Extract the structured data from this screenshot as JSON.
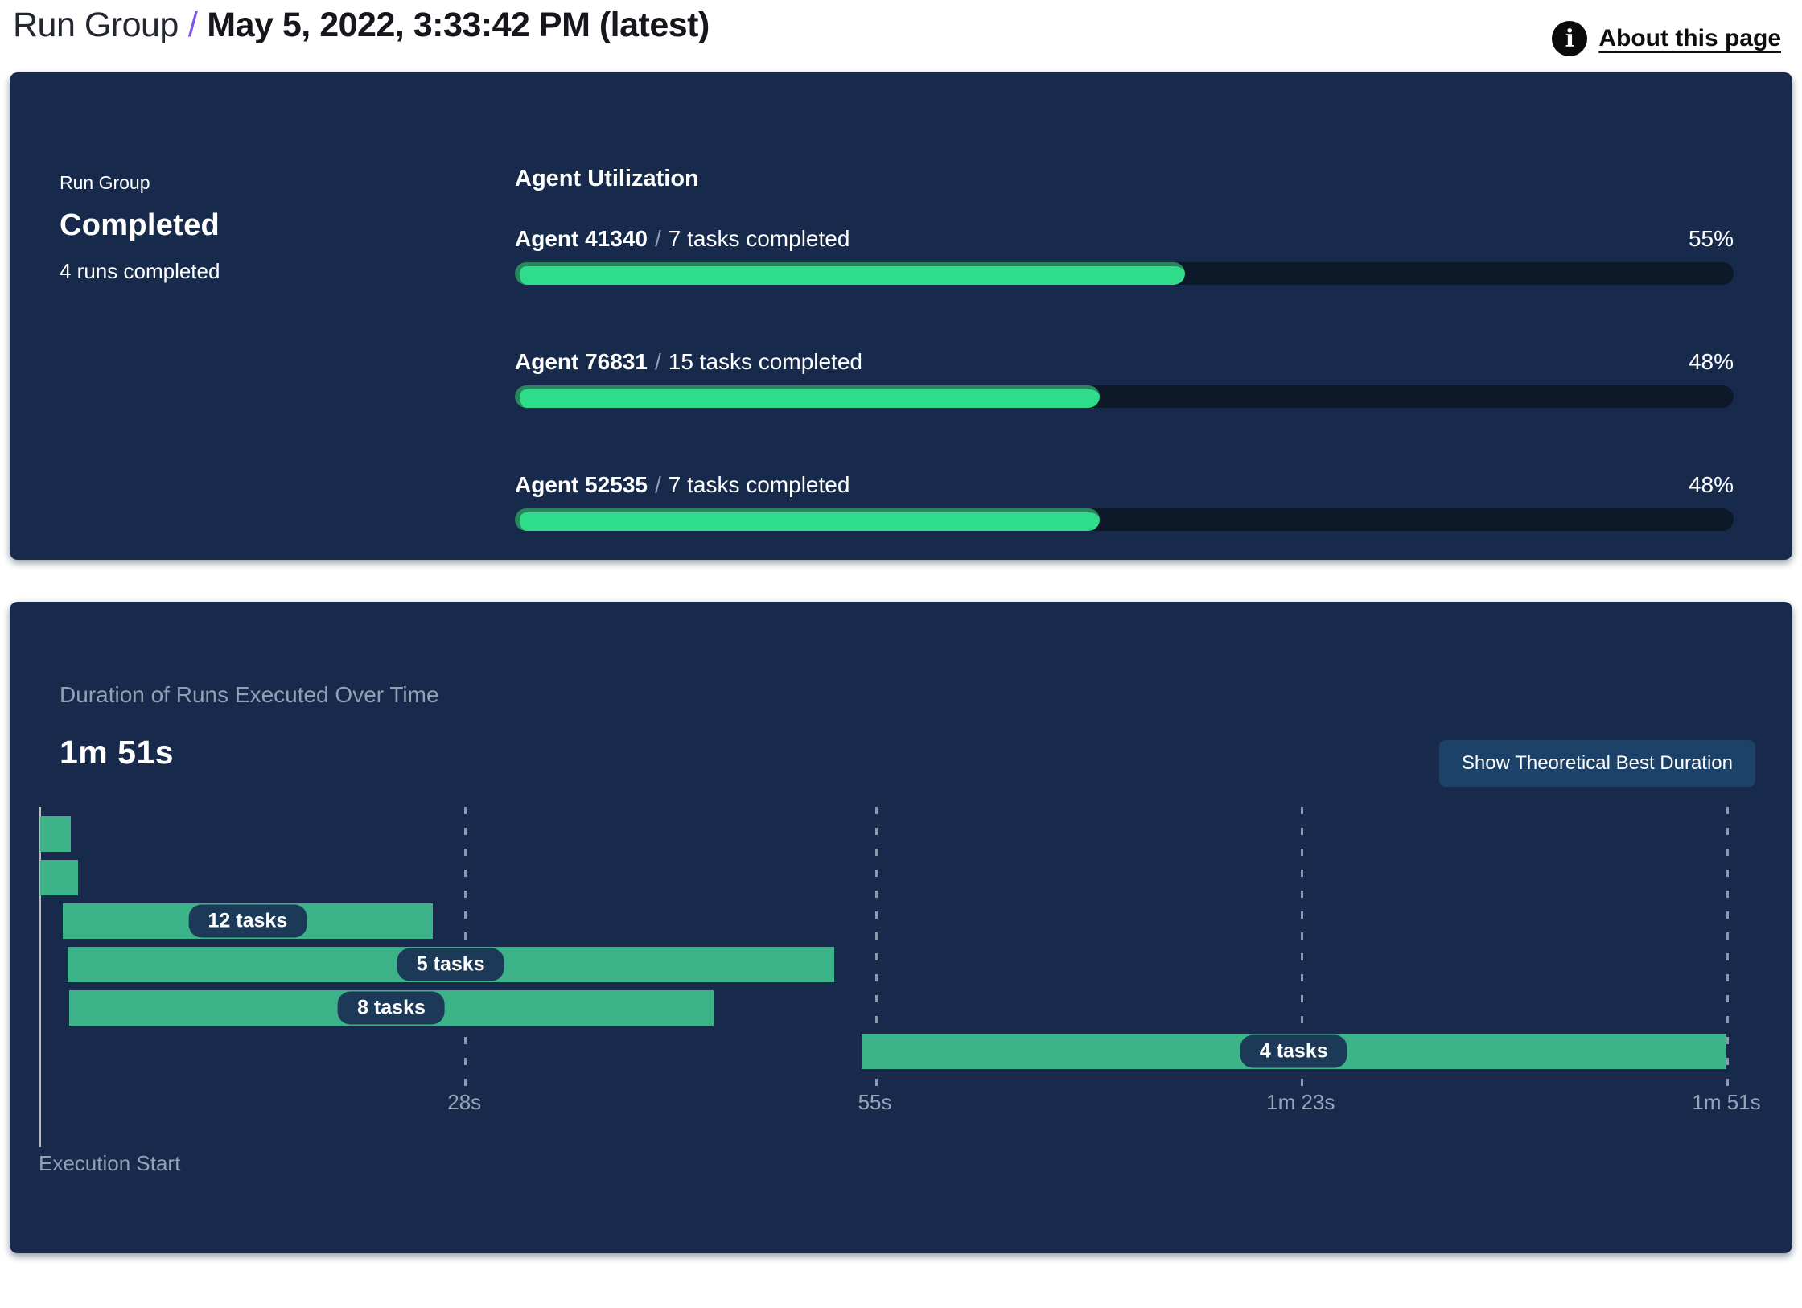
{
  "header": {
    "breadcrumb_root": "Run Group",
    "separator": "/",
    "breadcrumb_current": "May 5, 2022, 3:33:42 PM (latest)",
    "about_link": "About this page",
    "info_icon_glyph": "i"
  },
  "summary": {
    "label": "Run Group",
    "status": "Completed",
    "runs_completed": "4 runs completed"
  },
  "agent_utilization": {
    "title": "Agent Utilization",
    "separator": "/",
    "agents": [
      {
        "name": "Agent 41340",
        "tasks": "7 tasks completed",
        "percent": "55%",
        "value": 55
      },
      {
        "name": "Agent 76831",
        "tasks": "15 tasks completed",
        "percent": "48%",
        "value": 48
      },
      {
        "name": "Agent 52535",
        "tasks": "7 tasks completed",
        "percent": "48%",
        "value": 48
      }
    ]
  },
  "duration_chart": {
    "button_label": "Show Theoretical Best Duration"
  },
  "chart_data": [
    {
      "type": "bar",
      "title": "Agent Utilization",
      "categories": [
        "Agent 41340",
        "Agent 76831",
        "Agent 52535"
      ],
      "values": [
        55,
        48,
        48
      ],
      "unit": "%",
      "ylim": [
        0,
        100
      ],
      "legend_position": "none",
      "grid": false
    },
    {
      "type": "gantt",
      "title": "Duration of Runs Executed Over Time",
      "total_duration": "1m 51s",
      "x_axis_label": "Execution Start",
      "x_max_seconds": 111,
      "x_ticks": [
        {
          "label": "28s",
          "seconds": 28
        },
        {
          "label": "55s",
          "seconds": 55
        },
        {
          "label": "1m 23s",
          "seconds": 83
        },
        {
          "label": "1m 51s",
          "seconds": 111
        }
      ],
      "bars": [
        {
          "label": "",
          "start_s": 0.1,
          "end_s": 2.1
        },
        {
          "label": "",
          "start_s": 0.1,
          "end_s": 2.6
        },
        {
          "label": "12 tasks",
          "start_s": 1.6,
          "end_s": 25.9
        },
        {
          "label": "5 tasks",
          "start_s": 1.9,
          "end_s": 52.3
        },
        {
          "label": "8 tasks",
          "start_s": 2.0,
          "end_s": 44.4
        },
        {
          "label": "4 tasks",
          "start_s": 54.1,
          "end_s": 111
        }
      ],
      "grid": true
    }
  ],
  "colors": {
    "card_background": "#172a4c",
    "progress_fill": "#2edc89",
    "progress_fill_edge": "#28865c",
    "progress_track": "#0d1829",
    "gantt_bar": "#3cb389",
    "gantt_pill": "#1c3a57",
    "button_background": "#1d4269",
    "muted_text": "#93a0b4",
    "breadcrumb_separator": "#7b55f2"
  }
}
